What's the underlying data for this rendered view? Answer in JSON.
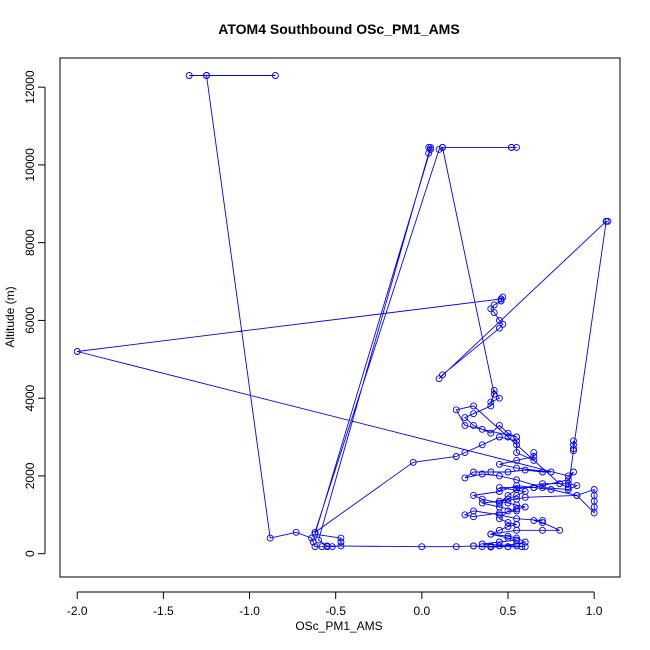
{
  "chart_data": {
    "type": "scatter",
    "title": "ATOM4 Southbound OSc_PM1_AMS",
    "xlabel": "OSc_PM1_AMS",
    "ylabel": "Altitude (m)",
    "xlim": [
      -2.1,
      1.15
    ],
    "ylim": [
      -600,
      12750
    ],
    "xticks": [
      -2.0,
      -1.5,
      -1.0,
      -0.5,
      0.0,
      0.5,
      1.0
    ],
    "xtick_labels": [
      "-2.0",
      "-1.5",
      "-1.0",
      "-0.5",
      "0.0",
      "0.5",
      "1.0"
    ],
    "yticks": [
      0,
      2000,
      4000,
      6000,
      8000,
      10000,
      12000
    ],
    "ytick_labels": [
      "0",
      "2000",
      "4000",
      "6000",
      "8000",
      "10000",
      "12000"
    ],
    "grid": false,
    "legend": "none",
    "series_color": "#0000ff",
    "series": [
      {
        "name": "OSc_PM1_AMS",
        "style": "line+markers",
        "points": [
          [
            -1.35,
            12300
          ],
          [
            -1.25,
            12300
          ],
          [
            -0.85,
            12300
          ],
          [
            -1.25,
            12300
          ],
          [
            -0.88,
            400
          ],
          [
            -0.73,
            550
          ],
          [
            -0.64,
            400
          ],
          [
            -0.63,
            300
          ],
          [
            -0.62,
            180
          ],
          [
            -0.58,
            180
          ],
          [
            -0.55,
            180
          ],
          [
            -0.52,
            180
          ],
          [
            -0.47,
            200
          ],
          [
            -0.47,
            300
          ],
          [
            -0.47,
            400
          ],
          [
            -0.62,
            500
          ],
          [
            0.05,
            10400
          ],
          [
            0.04,
            10450
          ],
          [
            0.05,
            10450
          ],
          [
            0.04,
            10300
          ],
          [
            -0.6,
            350
          ],
          [
            -0.55,
            200
          ],
          [
            0.0,
            180
          ],
          [
            0.2,
            180
          ],
          [
            0.3,
            200
          ],
          [
            0.4,
            170
          ],
          [
            0.5,
            180
          ],
          [
            0.55,
            200
          ],
          [
            0.6,
            180
          ],
          [
            0.35,
            250
          ],
          [
            0.45,
            300
          ],
          [
            0.55,
            350
          ],
          [
            0.5,
            400
          ],
          [
            0.4,
            500
          ],
          [
            0.55,
            600
          ],
          [
            0.7,
            600
          ],
          [
            0.8,
            600
          ],
          [
            0.7,
            800
          ],
          [
            0.65,
            850
          ],
          [
            0.7,
            850
          ],
          [
            0.55,
            900
          ],
          [
            0.45,
            1000
          ],
          [
            0.3,
            1100
          ],
          [
            0.25,
            1000
          ],
          [
            0.3,
            950
          ],
          [
            0.45,
            1050
          ],
          [
            0.55,
            1100
          ],
          [
            0.45,
            1200
          ],
          [
            0.35,
            1300
          ],
          [
            0.55,
            1400
          ],
          [
            0.6,
            1450
          ],
          [
            0.9,
            1500
          ],
          [
            1.0,
            1650
          ],
          [
            1.0,
            1500
          ],
          [
            1.0,
            1350
          ],
          [
            1.0,
            1200
          ],
          [
            1.0,
            1050
          ],
          [
            0.9,
            1500
          ],
          [
            0.75,
            1650
          ],
          [
            0.65,
            1700
          ],
          [
            0.55,
            1750
          ],
          [
            0.45,
            1600
          ],
          [
            0.3,
            1500
          ],
          [
            0.35,
            1400
          ],
          [
            0.45,
            1300
          ],
          [
            0.5,
            1500
          ],
          [
            0.55,
            1650
          ],
          [
            0.7,
            1800
          ],
          [
            0.85,
            1800
          ],
          [
            0.9,
            1750
          ],
          [
            0.85,
            1650
          ],
          [
            0.7,
            1700
          ],
          [
            0.55,
            1900
          ],
          [
            0.45,
            2000
          ],
          [
            0.35,
            2050
          ],
          [
            0.25,
            1950
          ],
          [
            0.3,
            2100
          ],
          [
            0.4,
            2100
          ],
          [
            0.5,
            2100
          ],
          [
            0.6,
            2150
          ],
          [
            0.7,
            2100
          ],
          [
            0.75,
            2100
          ],
          [
            0.55,
            2200
          ],
          [
            0.45,
            2300
          ],
          [
            0.55,
            2400
          ],
          [
            0.65,
            2500
          ],
          [
            0.65,
            2600
          ],
          [
            0.65,
            2400
          ],
          [
            0.55,
            2600
          ],
          [
            0.55,
            2800
          ],
          [
            0.55,
            2900
          ],
          [
            0.45,
            3000
          ],
          [
            0.35,
            2800
          ],
          [
            0.25,
            2600
          ],
          [
            0.2,
            2500
          ],
          [
            -0.05,
            2350
          ],
          [
            -0.62,
            550
          ],
          [
            0.1,
            10400
          ],
          [
            0.12,
            10450
          ],
          [
            0.52,
            10450
          ],
          [
            0.55,
            10450
          ],
          [
            0.52,
            10450
          ],
          [
            0.12,
            10450
          ],
          [
            0.42,
            4100
          ],
          [
            0.4,
            3900
          ],
          [
            0.45,
            4000
          ],
          [
            0.42,
            4200
          ],
          [
            0.4,
            3800
          ],
          [
            0.3,
            3600
          ],
          [
            0.25,
            3500
          ],
          [
            0.3,
            3300
          ],
          [
            0.35,
            3200
          ],
          [
            0.4,
            3100
          ],
          [
            0.45,
            3300
          ],
          [
            0.5,
            3100
          ],
          [
            0.55,
            3000
          ],
          [
            0.25,
            3300
          ],
          [
            0.2,
            3700
          ],
          [
            0.3,
            3800
          ],
          [
            0.5,
            3000
          ],
          [
            0.8,
            1800
          ],
          [
            0.85,
            1700
          ],
          [
            0.88,
            2650
          ],
          [
            0.88,
            2800
          ],
          [
            0.88,
            2900
          ],
          [
            0.88,
            2700
          ],
          [
            1.07,
            8550
          ],
          [
            1.08,
            8550
          ],
          [
            1.07,
            8550
          ],
          [
            0.1,
            4500
          ],
          [
            0.12,
            4600
          ],
          [
            0.45,
            5800
          ],
          [
            0.47,
            5900
          ],
          [
            0.45,
            6000
          ],
          [
            0.42,
            6200
          ],
          [
            0.4,
            6300
          ],
          [
            0.42,
            6400
          ],
          [
            0.46,
            6500
          ],
          [
            0.47,
            6600
          ],
          [
            0.46,
            6550
          ],
          [
            -2.0,
            5200
          ],
          [
            0.85,
            2000
          ],
          [
            0.88,
            2100
          ],
          [
            0.85,
            1900
          ],
          [
            0.65,
            1700
          ],
          [
            0.45,
            1700
          ],
          [
            0.6,
            1600
          ],
          [
            0.55,
            1500
          ],
          [
            0.5,
            1400
          ],
          [
            0.45,
            1350
          ],
          [
            0.5,
            1300
          ],
          [
            0.55,
            1250
          ],
          [
            0.6,
            1200
          ],
          [
            0.55,
            1150
          ],
          [
            0.5,
            1100
          ],
          [
            0.45,
            900
          ],
          [
            0.5,
            800
          ],
          [
            0.55,
            750
          ],
          [
            0.5,
            700
          ],
          [
            0.45,
            600
          ],
          [
            0.4,
            500
          ],
          [
            0.5,
            450
          ],
          [
            0.55,
            400
          ],
          [
            0.6,
            300
          ],
          [
            0.55,
            250
          ],
          [
            0.45,
            200
          ],
          [
            0.35,
            180
          ],
          [
            0.3,
            200
          ],
          [
            0.4,
            190
          ],
          [
            0.5,
            180
          ],
          [
            0.58,
            180
          ]
        ]
      }
    ]
  }
}
